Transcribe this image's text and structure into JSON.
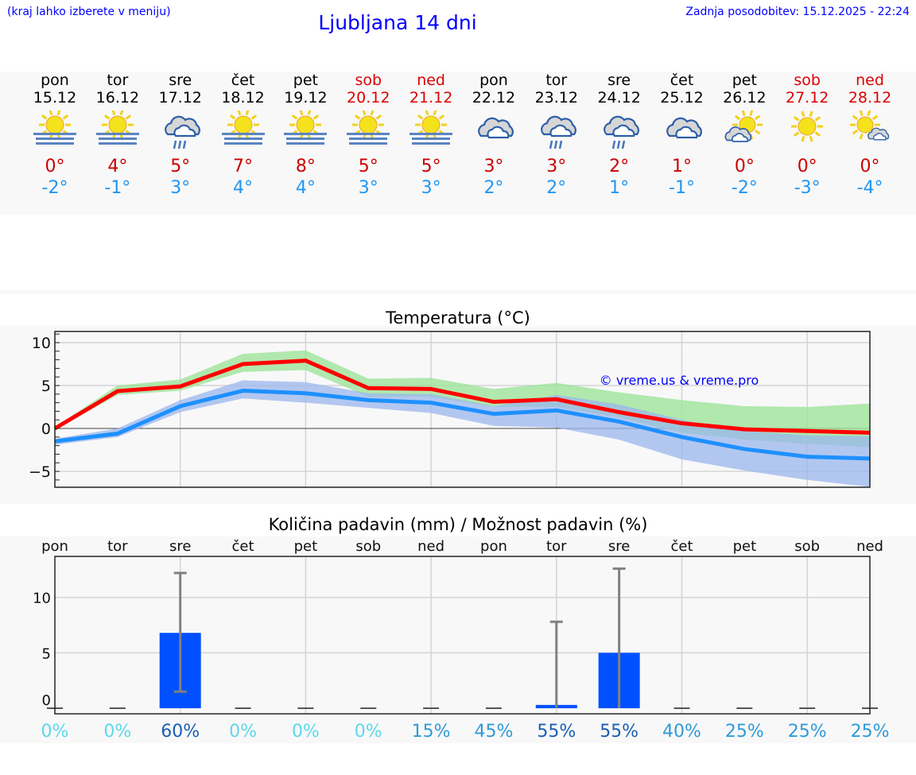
{
  "header": {
    "hint": "(kraj lahko izberete v meniju)",
    "title": "Ljubljana 14 dni",
    "updated": "Zadnja posodobitev: 15.12.2025 - 22:24"
  },
  "days": [
    {
      "name": "pon",
      "date": "15.12",
      "icon": "sun-fog",
      "max": "0°",
      "min": "-2°",
      "weekend": false
    },
    {
      "name": "tor",
      "date": "16.12",
      "icon": "sun-fog",
      "max": "4°",
      "min": "-1°",
      "weekend": false
    },
    {
      "name": "sre",
      "date": "17.12",
      "icon": "cloud-rain",
      "max": "5°",
      "min": "3°",
      "weekend": false
    },
    {
      "name": "čet",
      "date": "18.12",
      "icon": "sun-fog",
      "max": "7°",
      "min": "4°",
      "weekend": false
    },
    {
      "name": "pet",
      "date": "19.12",
      "icon": "sun-fog",
      "max": "8°",
      "min": "4°",
      "weekend": false
    },
    {
      "name": "sob",
      "date": "20.12",
      "icon": "sun-fog",
      "max": "5°",
      "min": "3°",
      "weekend": true
    },
    {
      "name": "ned",
      "date": "21.12",
      "icon": "sun-fog",
      "max": "5°",
      "min": "3°",
      "weekend": true
    },
    {
      "name": "pon",
      "date": "22.12",
      "icon": "cloud",
      "max": "3°",
      "min": "2°",
      "weekend": false
    },
    {
      "name": "tor",
      "date": "23.12",
      "icon": "cloud-rain",
      "max": "3°",
      "min": "2°",
      "weekend": false
    },
    {
      "name": "sre",
      "date": "24.12",
      "icon": "cloud-rain",
      "max": "2°",
      "min": "1°",
      "weekend": false
    },
    {
      "name": "čet",
      "date": "25.12",
      "icon": "cloud",
      "max": "1°",
      "min": "-1°",
      "weekend": false
    },
    {
      "name": "pet",
      "date": "26.12",
      "icon": "sun-cloud",
      "max": "0°",
      "min": "-2°",
      "weekend": false
    },
    {
      "name": "sob",
      "date": "27.12",
      "icon": "sun",
      "max": "0°",
      "min": "-3°",
      "weekend": true
    },
    {
      "name": "ned",
      "date": "28.12",
      "icon": "sun-small-cloud",
      "max": "0°",
      "min": "-4°",
      "weekend": true
    }
  ],
  "chart_data": [
    {
      "type": "line",
      "title": "Temperatura (°C)",
      "watermark": "© vreme.us & vreme.pro",
      "ylim": [
        -6.85,
        11.3
      ],
      "yticks": [
        "10",
        "5",
        "0",
        "−5"
      ],
      "grid": true,
      "colors": {
        "max": "#ff0000",
        "min": "#1e90ff",
        "max_band": "#9de39a",
        "min_band": "#9bb7ee"
      },
      "series": [
        {
          "key": "max",
          "values": [
            0,
            4.35,
            4.9,
            7.5,
            7.9,
            4.7,
            4.6,
            3.1,
            3.4,
            1.9,
            0.6,
            -0.1,
            -0.3,
            -0.5
          ],
          "band_low": [
            -0.2,
            3.9,
            4.4,
            6.6,
            6.8,
            3.7,
            3.7,
            2.5,
            2.5,
            1.3,
            -0.5,
            -1.3,
            -1.8,
            -2.2
          ],
          "band_high": [
            0.2,
            5.0,
            5.7,
            8.7,
            9.1,
            5.8,
            5.9,
            4.6,
            5.3,
            4.2,
            3.3,
            2.6,
            2.5,
            2.9
          ]
        },
        {
          "key": "min",
          "values": [
            -1.5,
            -0.6,
            2.6,
            4.4,
            4.1,
            3.3,
            3.0,
            1.7,
            2.1,
            0.8,
            -1.0,
            -2.4,
            -3.3,
            -3.5
          ],
          "band_low": [
            -1.9,
            -1.0,
            1.9,
            3.5,
            3.0,
            2.4,
            1.8,
            0.3,
            0.1,
            -1.3,
            -3.6,
            -4.9,
            -6.0,
            -6.8
          ],
          "band_high": [
            -1.2,
            0.0,
            3.3,
            5.6,
            5.4,
            4.1,
            4.0,
            2.6,
            3.9,
            2.8,
            1.0,
            -0.3,
            -0.8,
            -0.9
          ]
        }
      ]
    },
    {
      "type": "bar",
      "title": "Količina padavin (mm) / Možnost padavin (%)",
      "ylim": [
        -0.5,
        13.7
      ],
      "yticks": [
        "10",
        "5",
        "0"
      ],
      "grid": true,
      "categories": [
        "pon",
        "tor",
        "sre",
        "čet",
        "pet",
        "sob",
        "ned",
        "pon",
        "tor",
        "sre",
        "čet",
        "pet",
        "sob",
        "ned"
      ],
      "values": [
        0,
        0,
        6.8,
        0,
        0,
        0,
        0,
        0,
        0.3,
        5.0,
        0,
        0,
        0,
        0
      ],
      "error_low": [
        0,
        0,
        1.5,
        0,
        0,
        0,
        0,
        0,
        0,
        0,
        0,
        0,
        0,
        0
      ],
      "error_high": [
        0,
        0,
        12.2,
        0,
        0,
        0,
        0,
        0,
        7.8,
        12.6,
        0,
        0,
        0,
        0
      ],
      "probability": [
        "0%",
        "0%",
        "60%",
        "0%",
        "0%",
        "0%",
        "15%",
        "45%",
        "55%",
        "55%",
        "40%",
        "25%",
        "25%",
        "25%"
      ],
      "colors": {
        "bar": "#0050ff",
        "error": "#808080",
        "prob_low": "#5dd8ea",
        "prob_mid": "#2f9ad8",
        "prob_high": "#1a5fb4"
      }
    }
  ]
}
